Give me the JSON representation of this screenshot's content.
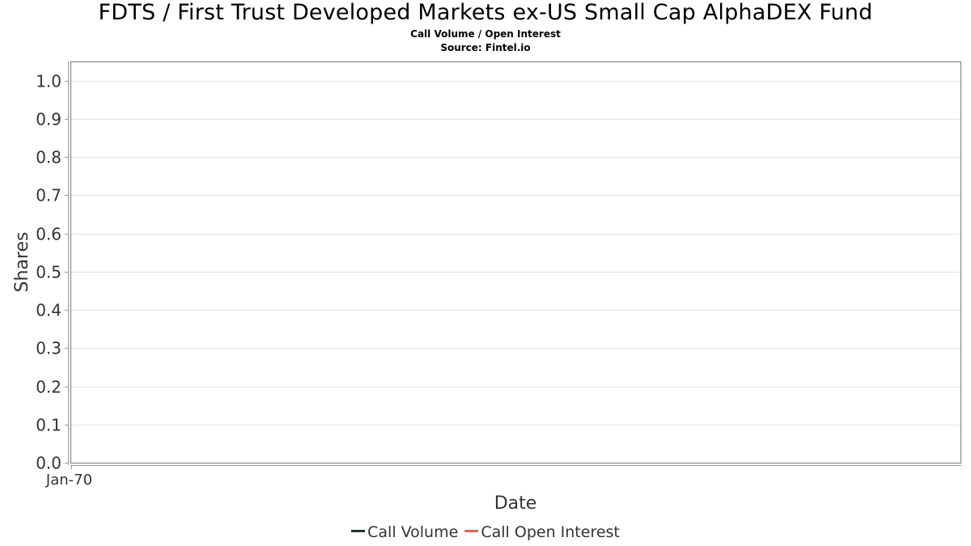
{
  "header": {
    "title": "FDTS / First Trust Developed Markets ex-US Small Cap AlphaDEX Fund",
    "subtitle": "Call Volume / Open Interest",
    "source": "Source: Fintel.io"
  },
  "legend": {
    "items": [
      {
        "label": "Call Volume",
        "color": "#1f3a2e"
      },
      {
        "label": "Call Open Interest",
        "color": "#f0605a"
      }
    ]
  },
  "chart_data": {
    "type": "line",
    "title": "FDTS / First Trust Developed Markets ex-US Small Cap AlphaDEX Fund",
    "subtitle": "Call Volume / Open Interest",
    "xlabel": "Date",
    "ylabel": "Shares",
    "x_ticks": [
      "Jan-70"
    ],
    "y_ticks": [
      "0.0",
      "0.1",
      "0.2",
      "0.3",
      "0.4",
      "0.5",
      "0.6",
      "0.7",
      "0.8",
      "0.9",
      "1.0"
    ],
    "ylim": [
      0,
      1.05
    ],
    "grid": true,
    "legend_position": "bottom",
    "series": [
      {
        "name": "Call Volume",
        "color": "#1f3a2e",
        "values": []
      },
      {
        "name": "Call Open Interest",
        "color": "#f0605a",
        "values": []
      }
    ]
  }
}
